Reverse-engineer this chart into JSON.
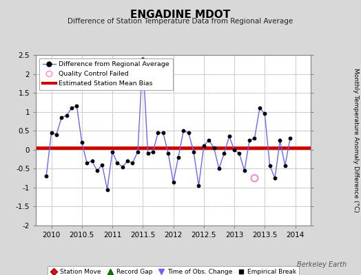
{
  "title": "ENGADINE MDOT",
  "subtitle": "Difference of Station Temperature Data from Regional Average",
  "ylabel": "Monthly Temperature Anomaly Difference (°C)",
  "bias_value": 0.05,
  "xlim": [
    2009.75,
    2014.25
  ],
  "ylim": [
    -2.0,
    2.5
  ],
  "yticks": [
    -2.0,
    -1.5,
    -1.0,
    -0.5,
    0.0,
    0.5,
    1.0,
    1.5,
    2.0,
    2.5
  ],
  "xticks": [
    2010,
    2010.5,
    2011,
    2011.5,
    2012,
    2012.5,
    2013,
    2013.5,
    2014
  ],
  "background_color": "#d8d8d8",
  "plot_background": "#ffffff",
  "line_color": "#6666ff",
  "marker_color": "#000000",
  "bias_color": "#cc0000",
  "qc_fail_color": "#ff88cc",
  "watermark": "Berkeley Earth",
  "x_values": [
    2009.917,
    2010.0,
    2010.083,
    2010.167,
    2010.25,
    2010.333,
    2010.417,
    2010.5,
    2010.583,
    2010.667,
    2010.75,
    2010.833,
    2010.917,
    2011.0,
    2011.083,
    2011.167,
    2011.25,
    2011.333,
    2011.417,
    2011.5,
    2011.583,
    2011.667,
    2011.75,
    2011.833,
    2011.917,
    2012.0,
    2012.083,
    2012.167,
    2012.25,
    2012.333,
    2012.417,
    2012.5,
    2012.583,
    2012.667,
    2012.75,
    2012.833,
    2012.917,
    2013.0,
    2013.083,
    2013.167,
    2013.25,
    2013.333,
    2013.417,
    2013.5,
    2013.583,
    2013.667,
    2013.75,
    2013.833,
    2013.917
  ],
  "y_values": [
    -0.7,
    0.45,
    0.4,
    0.85,
    0.9,
    1.1,
    1.15,
    0.2,
    -0.35,
    -0.3,
    -0.55,
    -0.4,
    -1.05,
    -0.05,
    -0.35,
    -0.45,
    -0.3,
    -0.35,
    -0.05,
    2.4,
    -0.1,
    -0.05,
    0.45,
    0.45,
    -0.1,
    -0.85,
    -0.2,
    0.5,
    0.45,
    -0.05,
    -0.95,
    0.1,
    0.25,
    0.05,
    -0.5,
    -0.1,
    0.35,
    0.0,
    -0.1,
    -0.55,
    0.25,
    0.3,
    1.1,
    0.95,
    -0.42,
    -0.75,
    0.25,
    -0.42,
    0.3
  ],
  "qc_fail_x": [
    2013.333
  ],
  "qc_fail_y": [
    -0.75
  ]
}
